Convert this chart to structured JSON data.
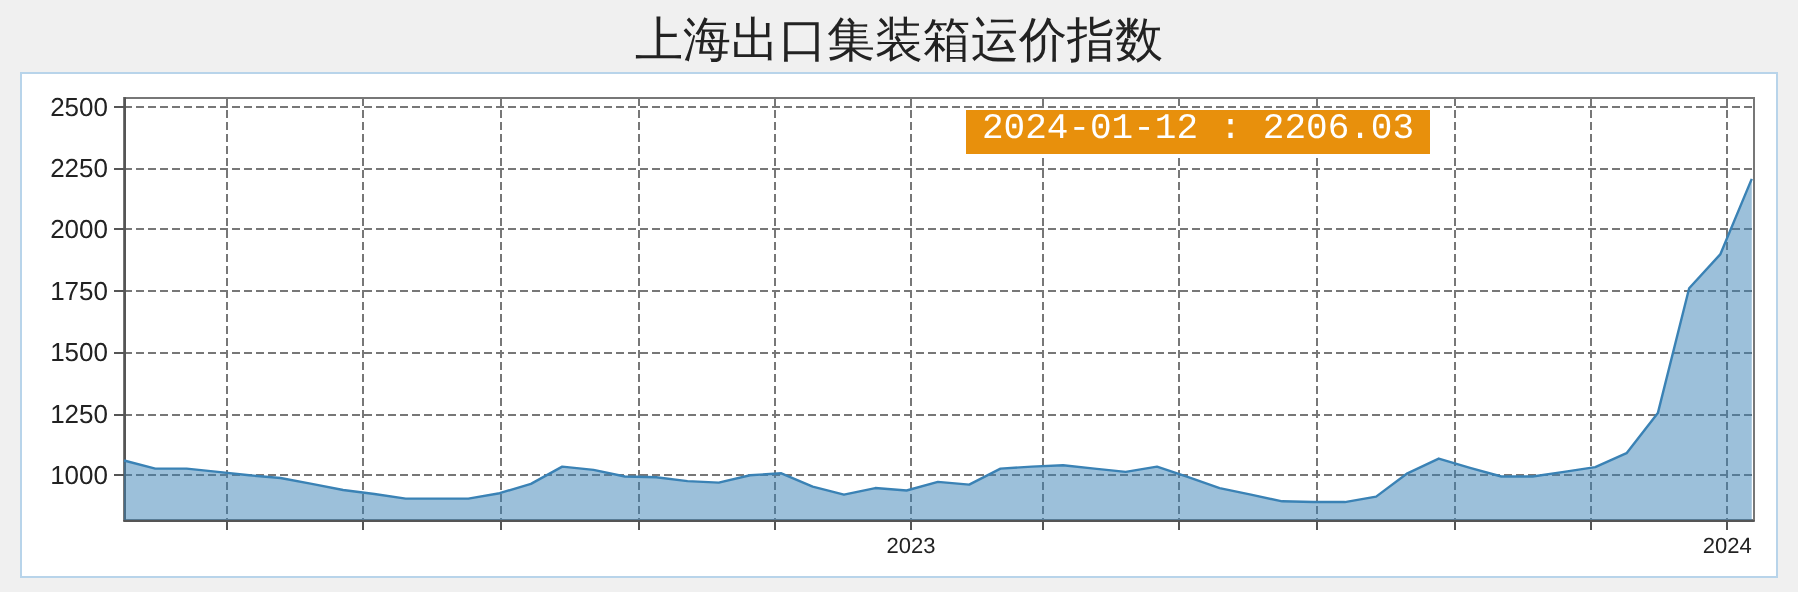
{
  "chart_data": {
    "type": "area",
    "title": "上海出口集装箱运价指数",
    "annotations": [
      "2024-01-12 : 2206.03"
    ],
    "x": [
      "2022-01-14",
      "2022-01-28",
      "2022-02-11",
      "2022-02-25",
      "2022-03-11",
      "2022-03-25",
      "2022-04-08",
      "2022-04-22",
      "2022-05-06",
      "2022-05-20",
      "2022-06-03",
      "2022-06-17",
      "2022-07-01",
      "2022-07-15",
      "2022-07-29",
      "2022-08-12",
      "2022-08-26",
      "2022-09-09",
      "2022-09-23",
      "2022-10-07",
      "2022-10-21",
      "2022-11-04",
      "2022-11-18",
      "2022-12-02",
      "2022-12-16",
      "2022-12-30",
      "2023-01-13",
      "2023-01-27",
      "2023-02-10",
      "2023-02-24",
      "2023-03-10",
      "2023-03-24",
      "2023-04-07",
      "2023-04-21",
      "2023-05-05",
      "2023-05-19",
      "2023-06-02",
      "2023-06-16",
      "2023-06-30",
      "2023-07-14",
      "2023-07-28",
      "2023-08-11",
      "2023-08-25",
      "2023-09-08",
      "2023-09-22",
      "2023-10-06",
      "2023-10-20",
      "2023-11-03",
      "2023-11-17",
      "2023-12-01",
      "2023-12-15",
      "2023-12-29",
      "2024-01-12"
    ],
    "series": [
      {
        "color": "#3a82b5",
        "values": [
          1060,
          1027,
          1027,
          1014,
          1000,
          989,
          965,
          940,
          924,
          905,
          905,
          905,
          927,
          965,
          1035,
          1022,
          995,
          992,
          976,
          970,
          1000,
          1008,
          954,
          921,
          948,
          938,
          973,
          962,
          1027,
          1035,
          1041,
          1027,
          1014,
          1035,
          992,
          948,
          921,
          894,
          891,
          891,
          913,
          1008,
          1068,
          1030,
          995,
          995,
          1014,
          1033,
          1090,
          1253,
          1761,
          1900,
          2206.03
        ]
      }
    ],
    "xlim": [
      "2022-01-14",
      "2024-01-13"
    ],
    "xticks": [
      {
        "value": "2022-03-01",
        "label": null
      },
      {
        "value": "2022-05-01",
        "label": null
      },
      {
        "value": "2022-07-01",
        "label": null
      },
      {
        "value": "2022-09-01",
        "label": null
      },
      {
        "value": "2022-11-01",
        "label": null
      },
      {
        "value": "2023-01-01",
        "label": "2023"
      },
      {
        "value": "2023-03-01",
        "label": null
      },
      {
        "value": "2023-05-01",
        "label": null
      },
      {
        "value": "2023-07-01",
        "label": null
      },
      {
        "value": "2023-09-01",
        "label": null
      },
      {
        "value": "2023-11-01",
        "label": null
      },
      {
        "value": "2024-01-01",
        "label": "2024"
      }
    ],
    "ylim": [
      818,
      2535
    ],
    "yticks": [
      1000,
      1250,
      1500,
      1750,
      2000,
      2250,
      2500
    ],
    "grid": true,
    "marker": "none",
    "line_style": "solid"
  }
}
